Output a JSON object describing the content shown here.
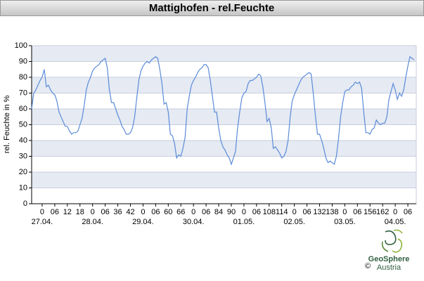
{
  "chart_data": {
    "type": "line",
    "title": "Mattighofen - rel.Feuchte",
    "y_label": "rel. Feuchte in %",
    "x": [
      -5,
      -4,
      -3,
      -2,
      -1,
      0,
      1,
      2,
      3,
      4,
      5,
      6,
      7,
      8,
      9,
      10,
      11,
      12,
      13,
      14,
      15,
      16,
      17,
      18,
      19,
      20,
      21,
      22,
      23,
      24,
      25,
      26,
      27,
      28,
      29,
      30,
      31,
      32,
      33,
      34,
      35,
      36,
      37,
      38,
      39,
      40,
      41,
      42,
      43,
      44,
      45,
      46,
      47,
      48,
      49,
      50,
      51,
      52,
      53,
      54,
      55,
      56,
      57,
      58,
      59,
      60,
      61,
      62,
      63,
      64,
      65,
      66,
      67,
      68,
      69,
      70,
      71,
      72,
      73,
      74,
      75,
      76,
      77,
      78,
      79,
      80,
      81,
      82,
      83,
      84,
      85,
      86,
      87,
      88,
      89,
      90,
      91,
      92,
      93,
      94,
      95,
      96,
      97,
      98,
      99,
      100,
      101,
      102,
      103,
      104,
      105,
      106,
      107,
      108,
      109,
      110,
      111,
      112,
      113,
      114,
      115,
      116,
      117,
      118,
      119,
      120,
      121,
      122,
      123,
      124,
      125,
      126,
      127,
      128,
      129,
      130,
      131,
      132,
      133,
      134,
      135,
      136,
      137,
      138,
      139,
      140,
      141,
      142,
      143,
      144,
      145,
      146,
      147,
      148,
      149,
      150,
      151,
      152,
      153,
      154,
      155,
      156,
      157,
      158,
      159,
      160,
      161,
      162,
      163,
      164,
      165,
      166,
      167,
      168,
      169,
      170,
      171,
      172,
      173,
      174,
      175,
      176,
      177
    ],
    "series": [
      {
        "name": "rel. Feuchte",
        "color": "#5b8bd9",
        "values": [
          60,
          70,
          72,
          75,
          78,
          80,
          85,
          74,
          75,
          72,
          70,
          69,
          65,
          58,
          55,
          52,
          49,
          49,
          46,
          44,
          45,
          45,
          46,
          50,
          54,
          62,
          72,
          77,
          80,
          84,
          86,
          87,
          88,
          90,
          91,
          92,
          86,
          72,
          64,
          64,
          60,
          56,
          53,
          49,
          47,
          44,
          44,
          45,
          48,
          55,
          67,
          78,
          84,
          87,
          89,
          90,
          89,
          91,
          92,
          93,
          92,
          85,
          76,
          63,
          64,
          58,
          44,
          43,
          38,
          29,
          31,
          30,
          35,
          42,
          60,
          68,
          75,
          78,
          80,
          83,
          85,
          86,
          88,
          88,
          86,
          78,
          68,
          58,
          58,
          48,
          40,
          36,
          34,
          31,
          29,
          25,
          29,
          33,
          48,
          58,
          67,
          70,
          71,
          76,
          78,
          78,
          79,
          80,
          82,
          81,
          74,
          64,
          52,
          54,
          48,
          35,
          36,
          34,
          32,
          29,
          30,
          33,
          40,
          55,
          65,
          69,
          72,
          75,
          78,
          80,
          81,
          82,
          83,
          82,
          70,
          56,
          44,
          44,
          40,
          35,
          29,
          26,
          27,
          26,
          25,
          30,
          41,
          55,
          64,
          71,
          72,
          72,
          74,
          75,
          77,
          76,
          77,
          73,
          58,
          45,
          45,
          44,
          47,
          48,
          53,
          51,
          50,
          51,
          51,
          55,
          66,
          71,
          76,
          72,
          66,
          70,
          68,
          72,
          80,
          87,
          93,
          92,
          91
        ]
      }
    ],
    "xlim": [
      -5,
      178
    ],
    "ylim": [
      0,
      100
    ],
    "yticks": [
      0,
      10,
      20,
      30,
      40,
      50,
      60,
      70,
      80,
      90,
      100
    ],
    "xticks": [
      0,
      {
        "value": 6,
        "label": "06"
      },
      12,
      18,
      {
        "value": 24,
        "label": "0"
      },
      {
        "value": 30,
        "label": "06"
      },
      36,
      42,
      {
        "value": 48,
        "label": "0"
      },
      {
        "value": 54,
        "label": "06"
      },
      60,
      66,
      {
        "value": 72,
        "label": "0"
      },
      {
        "value": 78,
        "label": "06"
      },
      84,
      90,
      {
        "value": 96,
        "label": "0"
      },
      {
        "value": 102,
        "label": "06"
      },
      108,
      114,
      {
        "value": 120,
        "label": "0"
      },
      {
        "value": 126,
        "label": "06"
      },
      132,
      138,
      {
        "value": 144,
        "label": "0"
      },
      {
        "value": 150,
        "label": "06"
      },
      156,
      162,
      {
        "value": 168,
        "label": "0"
      },
      {
        "value": 174,
        "label": "06"
      }
    ],
    "date_ticks": [
      {
        "value": 0,
        "label": "27.04."
      },
      {
        "value": 24,
        "label": "28.04."
      },
      {
        "value": 48,
        "label": "29.04."
      },
      {
        "value": 72,
        "label": "30.04."
      },
      {
        "value": 96,
        "label": "01.05."
      },
      {
        "value": 120,
        "label": "02.05."
      },
      {
        "value": 144,
        "label": "03.05."
      },
      {
        "value": 168,
        "label": "04.05."
      }
    ],
    "grid": true,
    "band_color": "#e5eaf3"
  },
  "logo": {
    "name": "GeoSphere",
    "sub": "Austria",
    "copyright": "©"
  }
}
